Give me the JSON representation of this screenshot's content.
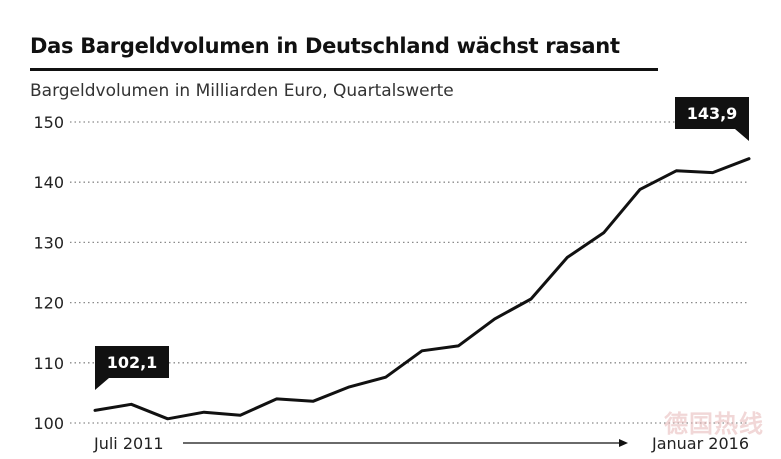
{
  "chart_data": {
    "type": "line",
    "title": "Das Bargeldvolumen in Deutschland wächst rasant",
    "subtitle": "Bargeldvolumen in Milliarden Euro, Quartalswerte",
    "xlabel": "",
    "ylabel": "",
    "x_start_label": "Juli 2011",
    "x_end_label": "Januar 2016",
    "ylim": [
      100,
      150
    ],
    "yticks": [
      "100",
      "110",
      "120",
      "130",
      "140",
      "150"
    ],
    "grid": "dotted horizontal",
    "series": [
      {
        "values": [
          102.1,
          103.1,
          100.7,
          101.8,
          101.3,
          104.0,
          103.6,
          106.0,
          107.6,
          112.0,
          112.8,
          117.3,
          120.6,
          127.5,
          131.6,
          138.8,
          141.9,
          141.6,
          143.9
        ]
      }
    ],
    "annotations": [
      {
        "label": "102,1",
        "index": 0
      },
      {
        "label": "143,9",
        "index": 18
      }
    ]
  },
  "watermark": "德国热线",
  "colors": {
    "line": "#111111",
    "grid": "#8a8a8a",
    "callout_bg": "#111111",
    "callout_text": "#ffffff"
  }
}
